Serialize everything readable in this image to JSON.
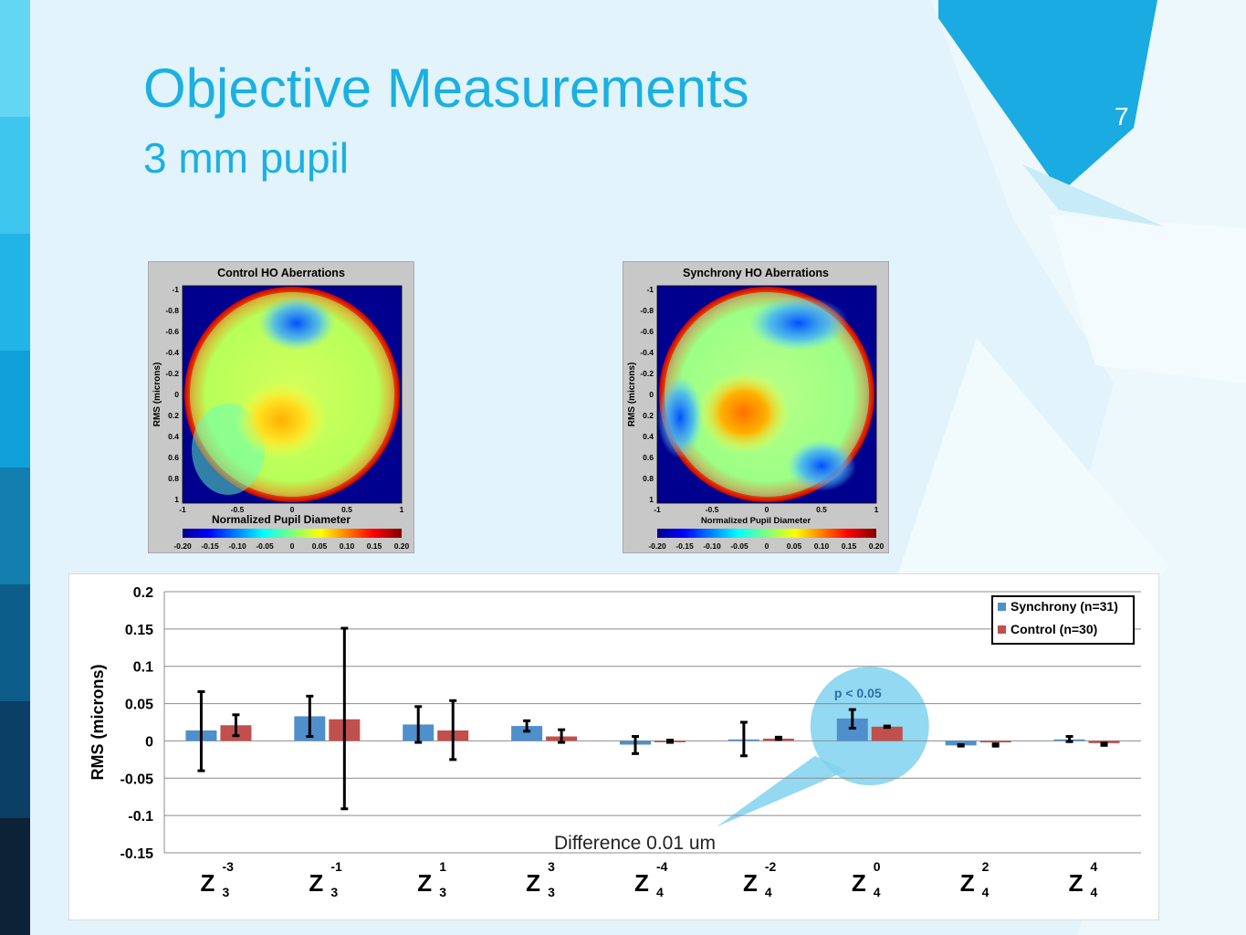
{
  "slide": {
    "title": "Objective Measurements",
    "subtitle": "3 mm pupil",
    "page_number": "7",
    "accent_color": "#1ab0e2"
  },
  "maps": [
    {
      "title": "Control HO Aberrations",
      "ylabel": "RMS (microns)",
      "xlabel": "Normalized Pupil Diameter",
      "y_ticks": [
        "-1",
        "-0.8",
        "-0.6",
        "-0.4",
        "-0.2",
        "0",
        "0.2",
        "0.4",
        "0.6",
        "0.8",
        "1"
      ],
      "x_ticks": [
        "-1",
        "-0.5",
        "0",
        "0.5",
        "1"
      ],
      "colorbar_ticks": [
        "-0.20",
        "-0.15",
        "-0.10",
        "-0.05",
        "0",
        "0.05",
        "0.10",
        "0.15",
        "0.20"
      ]
    },
    {
      "title": "Synchrony HO Aberrations",
      "ylabel": "RMS (microns)",
      "xlabel": "Normalized Pupil Diameter",
      "y_ticks": [
        "-1",
        "-0.8",
        "-0.6",
        "-0.4",
        "-0.2",
        "0",
        "0.2",
        "0.4",
        "0.6",
        "0.8",
        "1"
      ],
      "x_ticks": [
        "-1",
        "-0.5",
        "0",
        "0.5",
        "1"
      ],
      "colorbar_ticks": [
        "-0.20",
        "-0.15",
        "-0.10",
        "-0.05",
        "0",
        "0.05",
        "0.10",
        "0.15",
        "0.20"
      ]
    }
  ],
  "chart_data": {
    "type": "bar",
    "ylabel": "RMS (microns)",
    "ylim": [
      -0.15,
      0.2
    ],
    "y_ticks": [
      0.2,
      0.15,
      0.1,
      0.05,
      0,
      -0.05,
      -0.1,
      -0.15
    ],
    "grid": true,
    "legend_placement": "top-right",
    "categories": [
      {
        "base": "Z",
        "sub": "3",
        "sup": "-3"
      },
      {
        "base": "Z",
        "sub": "3",
        "sup": "-1"
      },
      {
        "base": "Z",
        "sub": "3",
        "sup": "1"
      },
      {
        "base": "Z",
        "sub": "3",
        "sup": "3"
      },
      {
        "base": "Z",
        "sub": "4",
        "sup": "-4"
      },
      {
        "base": "Z",
        "sub": "4",
        "sup": "-2"
      },
      {
        "base": "Z",
        "sub": "4",
        "sup": "0"
      },
      {
        "base": "Z",
        "sub": "4",
        "sup": "2"
      },
      {
        "base": "Z",
        "sub": "4",
        "sup": "4"
      }
    ],
    "series": [
      {
        "name": "Synchrony (n=31)",
        "color": "#4f8fcb",
        "values": [
          0.014,
          0.033,
          0.022,
          0.02,
          -0.005,
          0.002,
          0.03,
          -0.006,
          0.002
        ],
        "err_low": [
          -0.04,
          0.006,
          -0.002,
          0.013,
          -0.017,
          -0.02,
          0.017,
          -0.007,
          -0.001
        ],
        "err_high": [
          0.066,
          0.06,
          0.046,
          0.027,
          0.006,
          0.025,
          0.042,
          -0.005,
          0.006
        ]
      },
      {
        "name": "Control (n=30)",
        "color": "#c0504d",
        "values": [
          0.021,
          0.029,
          0.014,
          0.006,
          -0.001,
          0.003,
          0.019,
          -0.002,
          -0.003
        ],
        "err_low": [
          0.007,
          -0.091,
          -0.025,
          -0.002,
          -0.002,
          0.002,
          0.018,
          -0.007,
          -0.006
        ],
        "err_high": [
          0.035,
          0.151,
          0.054,
          0.015,
          0.001,
          0.005,
          0.02,
          -0.004,
          -0.003
        ]
      }
    ],
    "annotations": [
      "p < 0.05",
      "Difference 0.01 um"
    ]
  }
}
